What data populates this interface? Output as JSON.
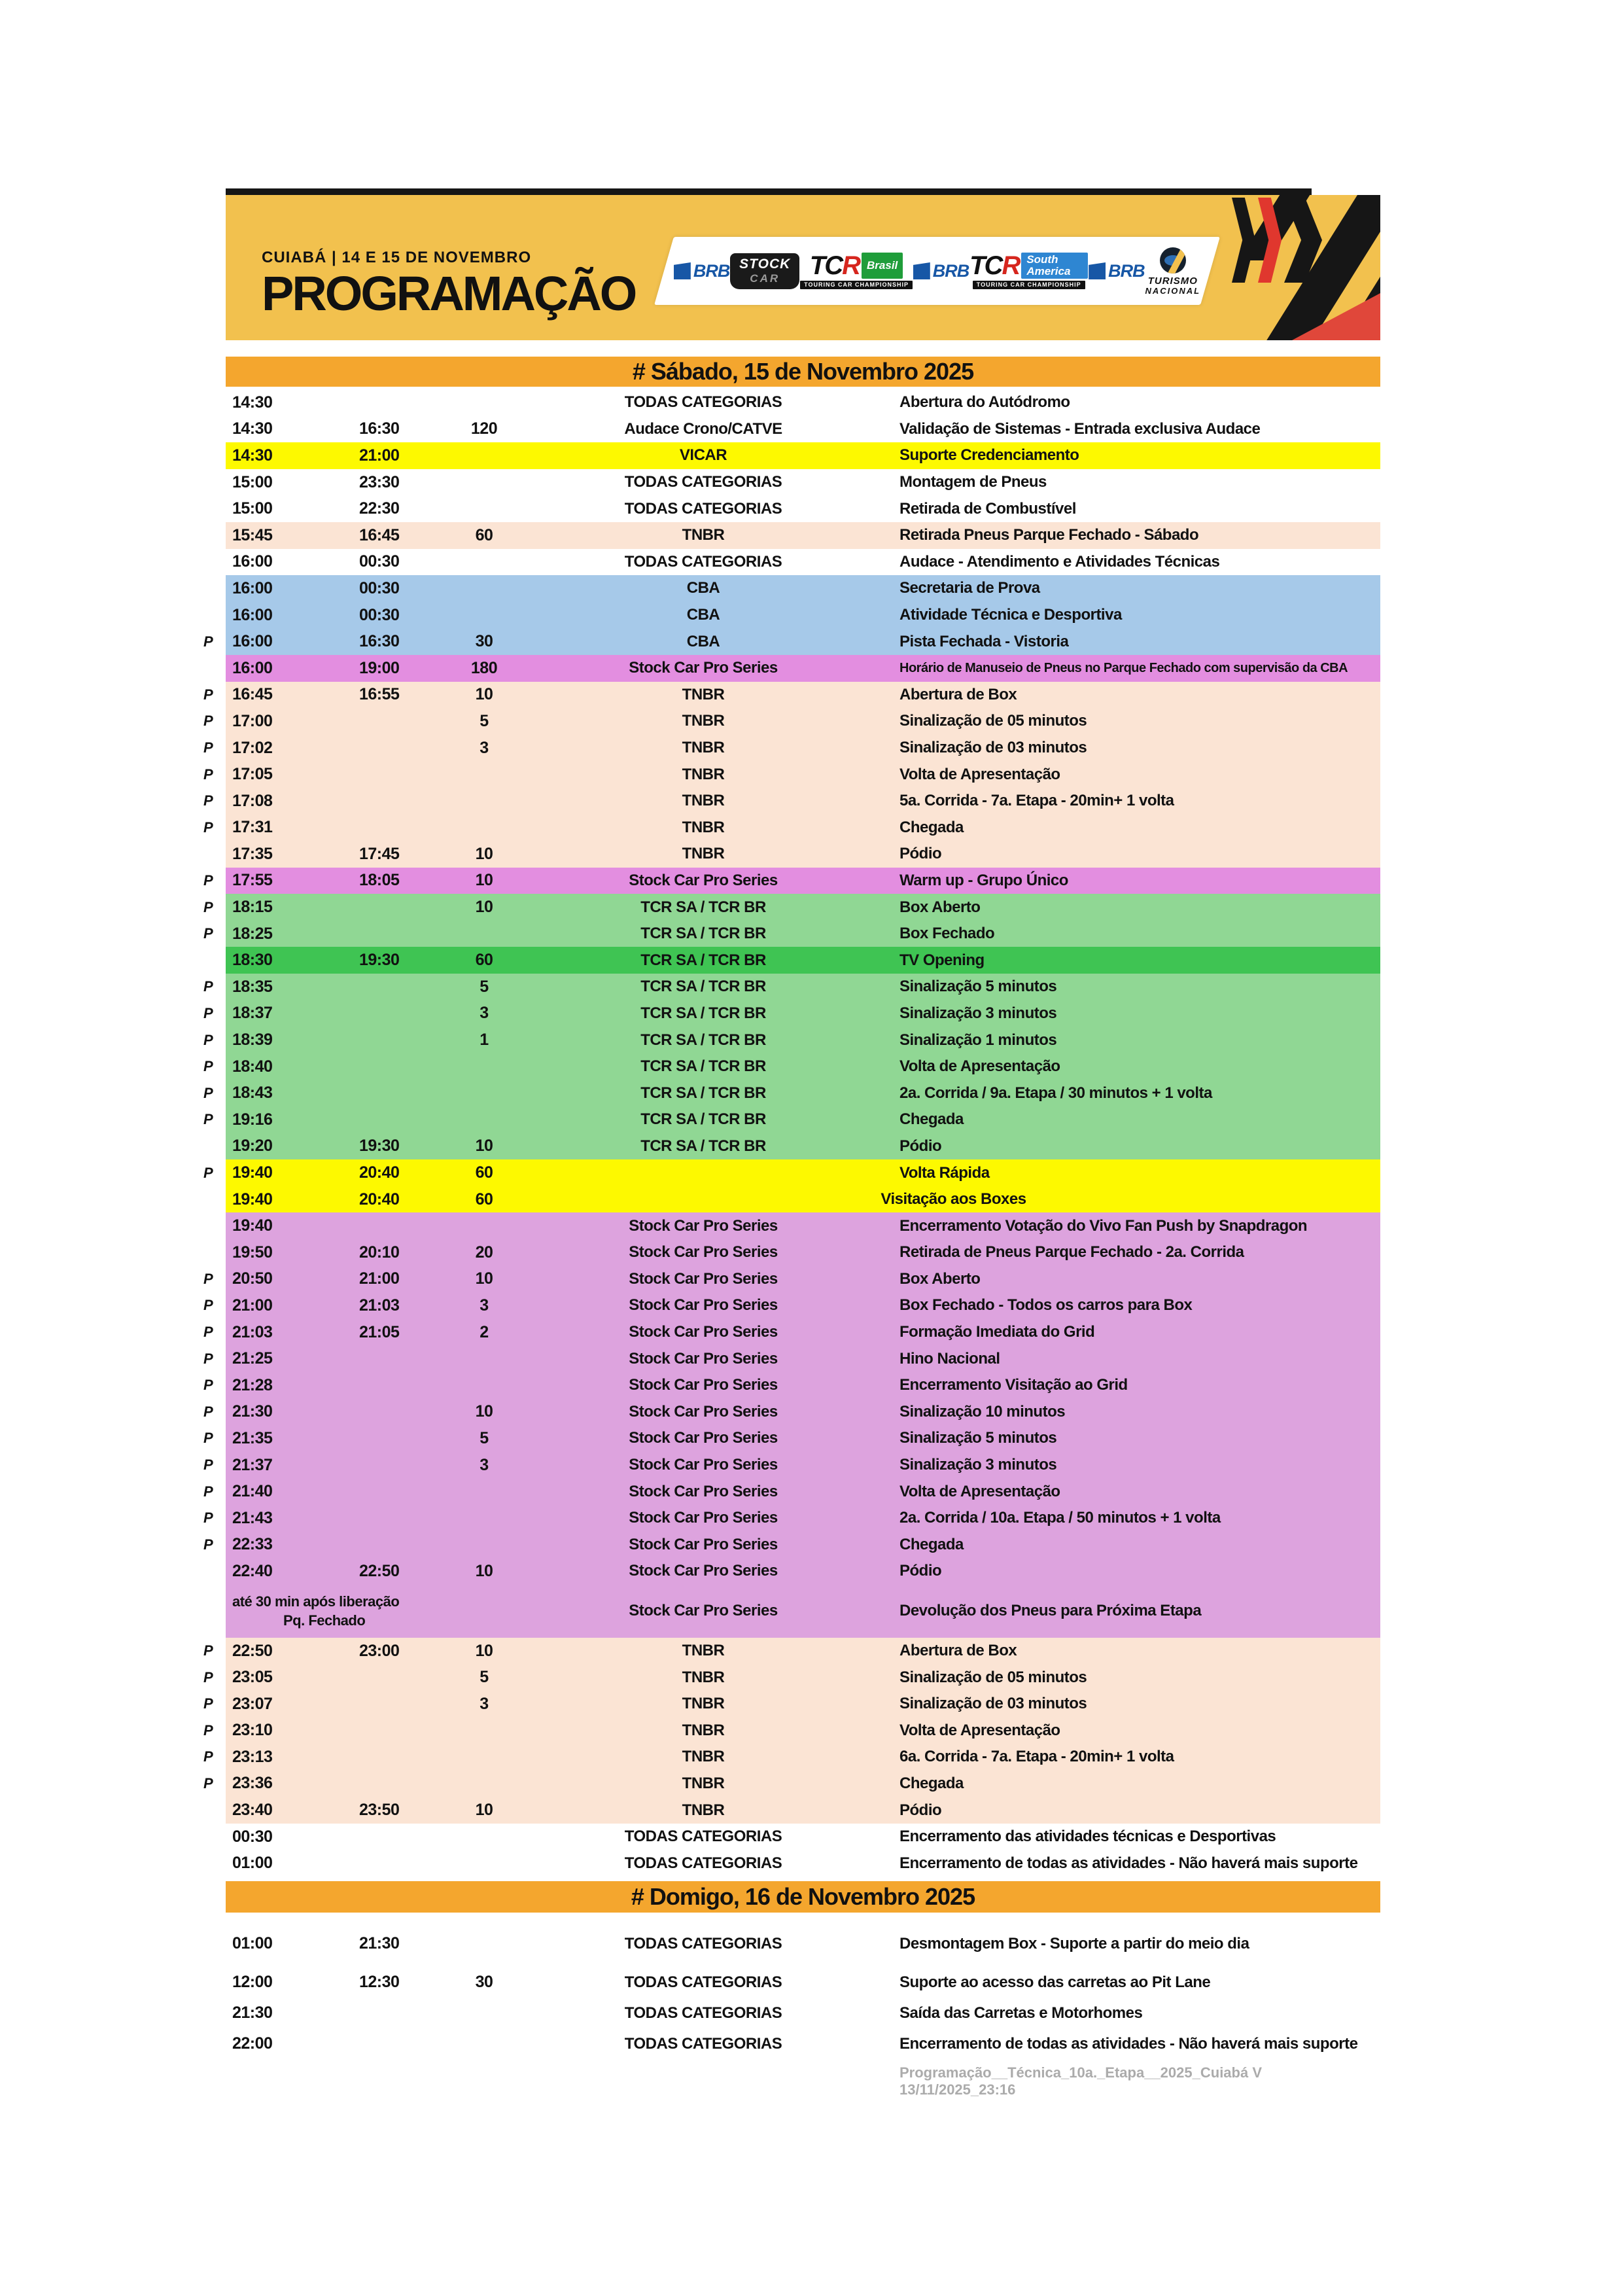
{
  "header": {
    "location_date": "CUIABÁ | 14 E  15 DE NOVEMBRO",
    "title": "PROGRAMAÇÃO",
    "logos": {
      "brb": "BRB",
      "stock_top": "STOCK",
      "stock_bottom": "CAR",
      "tcr_word": "TC",
      "tcr_r": "R",
      "tcr_brasil": "Brasil",
      "tcr_sub": "TOURING CAR CHAMPIONSHIP",
      "tcr_sa": "South America",
      "turismo_1": "TURISMO",
      "turismo_2": "NACIONAL"
    }
  },
  "colors": {
    "banner": "#f2c14e",
    "section_bar": "#f4a62e",
    "white": "#ffffff",
    "yellow": "#fdf900",
    "peach": "#fbe4d4",
    "blue": "#a6c9e9",
    "orchid": "#e38ee0",
    "plum": "#dda3de",
    "green": "#90d794",
    "darkgreen": "#3fc453"
  },
  "sections": [
    {
      "title": "# Sábado, 15 de Novembro 2025",
      "rows": [
        {
          "s": "14:30",
          "c": "TODAS CATEGORIAS",
          "a": "Abertura do Autódromo",
          "bg": "white"
        },
        {
          "s": "14:30",
          "e": "16:30",
          "d": "120",
          "c": "Audace Crono/CATVE",
          "a": "Validação de Sistemas - Entrada exclusiva Audace",
          "bg": "white"
        },
        {
          "s": "14:30",
          "e": "21:00",
          "c": "VICAR",
          "a": "Suporte Credenciamento",
          "bg": "yellow"
        },
        {
          "s": "15:00",
          "e": "23:30",
          "c": "TODAS CATEGORIAS",
          "a": "Montagem de Pneus",
          "bg": "white"
        },
        {
          "s": "15:00",
          "e": "22:30",
          "c": "TODAS CATEGORIAS",
          "a": "Retirada de Combustível",
          "bg": "white"
        },
        {
          "s": "15:45",
          "e": "16:45",
          "d": "60",
          "c": "TNBR",
          "a": "Retirada Pneus Parque Fechado - Sábado",
          "bg": "peach"
        },
        {
          "s": "16:00",
          "e": "00:30",
          "c": "TODAS CATEGORIAS",
          "a": "Audace - Atendimento e Atividades Técnicas",
          "bg": "white"
        },
        {
          "s": "16:00",
          "e": "00:30",
          "c": "CBA",
          "a": "Secretaria de Prova",
          "bg": "blue"
        },
        {
          "s": "16:00",
          "e": "00:30",
          "c": "CBA",
          "a": "Atividade Técnica e Desportiva",
          "bg": "blue"
        },
        {
          "p": 1,
          "s": "16:00",
          "e": "16:30",
          "d": "30",
          "c": "CBA",
          "a": "Pista Fechada - Vistoria",
          "bg": "blue"
        },
        {
          "s": "16:00",
          "e": "19:00",
          "d": "180",
          "c": "Stock Car Pro Series",
          "a": "Horário de Manuseio de Pneus no Parque Fechado com supervisão da CBA",
          "bg": "orchid",
          "small": 1
        },
        {
          "p": 1,
          "s": "16:45",
          "e": "16:55",
          "d": "10",
          "c": "TNBR",
          "a": "Abertura de Box",
          "bg": "peach"
        },
        {
          "p": 1,
          "s": "17:00",
          "d": "5",
          "c": "TNBR",
          "a": "Sinalização de 05 minutos",
          "bg": "peach"
        },
        {
          "p": 1,
          "s": "17:02",
          "d": "3",
          "c": "TNBR",
          "a": "Sinalização de 03 minutos",
          "bg": "peach"
        },
        {
          "p": 1,
          "s": "17:05",
          "c": "TNBR",
          "a": "Volta de Apresentação",
          "bg": "peach"
        },
        {
          "p": 1,
          "s": "17:08",
          "c": "TNBR",
          "a": "5a. Corrida - 7a. Etapa - 20min+ 1 volta",
          "bg": "peach"
        },
        {
          "p": 1,
          "s": "17:31",
          "c": "TNBR",
          "a": "Chegada",
          "bg": "peach"
        },
        {
          "s": "17:35",
          "e": "17:45",
          "d": "10",
          "c": "TNBR",
          "a": "Pódio",
          "bg": "peach"
        },
        {
          "p": 1,
          "s": "17:55",
          "e": "18:05",
          "d": "10",
          "c": "Stock Car Pro Series",
          "a": "Warm up - Grupo Único",
          "bg": "orchid"
        },
        {
          "p": 1,
          "s": "18:15",
          "d": "10",
          "c": "TCR SA / TCR BR",
          "a": "Box Aberto",
          "bg": "green"
        },
        {
          "p": 1,
          "s": "18:25",
          "c": "TCR SA / TCR BR",
          "a": "Box Fechado",
          "bg": "green"
        },
        {
          "s": "18:30",
          "e": "19:30",
          "d": "60",
          "c": "TCR SA / TCR BR",
          "a": "TV Opening",
          "bg": "darkgreen"
        },
        {
          "p": 1,
          "s": "18:35",
          "d": "5",
          "c": "TCR SA / TCR BR",
          "a": "Sinalização 5 minutos",
          "bg": "green"
        },
        {
          "p": 1,
          "s": "18:37",
          "d": "3",
          "c": "TCR SA / TCR BR",
          "a": "Sinalização 3 minutos",
          "bg": "green"
        },
        {
          "p": 1,
          "s": "18:39",
          "d": "1",
          "c": "TCR SA / TCR BR",
          "a": "Sinalização 1 minutos",
          "bg": "green"
        },
        {
          "p": 1,
          "s": "18:40",
          "c": "TCR SA / TCR BR",
          "a": "Volta de Apresentação",
          "bg": "green"
        },
        {
          "p": 1,
          "s": "18:43",
          "c": "TCR SA / TCR BR",
          "a": "2a. Corrida / 9a. Etapa / 30 minutos + 1 volta",
          "bg": "green"
        },
        {
          "p": 1,
          "s": "19:16",
          "c": "TCR SA / TCR BR",
          "a": "Chegada",
          "bg": "green"
        },
        {
          "s": "19:20",
          "e": "19:30",
          "d": "10",
          "c": "TCR SA / TCR BR",
          "a": "Pódio",
          "bg": "green"
        },
        {
          "p": 1,
          "s": "19:40",
          "e": "20:40",
          "d": "60",
          "a": "Volta Rápida",
          "bg": "yellow"
        },
        {
          "s": "19:40",
          "e": "20:40",
          "d": "60",
          "a": "Visitação aos Boxes",
          "bg": "yellow",
          "merge": 1
        },
        {
          "s": "19:40",
          "c": "Stock Car Pro Series",
          "a": "Encerramento Votação do Vivo Fan Push by Snapdragon",
          "bg": "plum"
        },
        {
          "s": "19:50",
          "e": "20:10",
          "d": "20",
          "c": "Stock Car Pro Series",
          "a": "Retirada de Pneus Parque Fechado - 2a. Corrida",
          "bg": "plum"
        },
        {
          "p": 1,
          "s": "20:50",
          "e": "21:00",
          "d": "10",
          "c": "Stock Car Pro Series",
          "a": "Box Aberto",
          "bg": "plum"
        },
        {
          "p": 1,
          "s": "21:00",
          "e": "21:03",
          "d": "3",
          "c": "Stock Car Pro Series",
          "a": "Box Fechado - Todos os carros para Box",
          "bg": "plum"
        },
        {
          "p": 1,
          "s": "21:03",
          "e": "21:05",
          "d": "2",
          "c": "Stock Car Pro Series",
          "a": "Formação Imediata do Grid",
          "bg": "plum"
        },
        {
          "p": 1,
          "s": "21:25",
          "c": "Stock Car Pro Series",
          "a": "Hino Nacional",
          "bg": "plum"
        },
        {
          "p": 1,
          "s": "21:28",
          "c": "Stock Car Pro Series",
          "a": "Encerramento Visitação ao Grid",
          "bg": "plum"
        },
        {
          "p": 1,
          "s": "21:30",
          "d": "10",
          "c": "Stock Car Pro Series",
          "a": "Sinalização 10 minutos",
          "bg": "plum"
        },
        {
          "p": 1,
          "s": "21:35",
          "d": "5",
          "c": "Stock Car Pro Series",
          "a": "Sinalização 5 minutos",
          "bg": "plum"
        },
        {
          "p": 1,
          "s": "21:37",
          "d": "3",
          "c": "Stock Car Pro Series",
          "a": "Sinalização 3 minutos",
          "bg": "plum"
        },
        {
          "p": 1,
          "s": "21:40",
          "c": "Stock Car Pro Series",
          "a": "Volta de Apresentação",
          "bg": "plum"
        },
        {
          "p": 1,
          "s": "21:43",
          "c": "Stock Car Pro Series",
          "a": "2a. Corrida / 10a. Etapa / 50 minutos + 1 volta",
          "bg": "plum"
        },
        {
          "p": 1,
          "s": "22:33",
          "c": "Stock Car Pro Series",
          "a": "Chegada",
          "bg": "plum"
        },
        {
          "s": "22:40",
          "e": "22:50",
          "d": "10",
          "c": "Stock Car Pro Series",
          "a": "Pódio",
          "bg": "plum"
        },
        {
          "s": "até 30 min após liberação",
          "s2": "Pq. Fechado",
          "c": "Stock Car Pro Series",
          "a": "Devolução dos Pneus para Próxima Etapa",
          "bg": "plum",
          "tall": 1
        },
        {
          "p": 1,
          "s": "22:50",
          "e": "23:00",
          "d": "10",
          "c": "TNBR",
          "a": "Abertura de Box",
          "bg": "peach"
        },
        {
          "p": 1,
          "s": "23:05",
          "d": "5",
          "c": "TNBR",
          "a": "Sinalização de 05 minutos",
          "bg": "peach"
        },
        {
          "p": 1,
          "s": "23:07",
          "d": "3",
          "c": "TNBR",
          "a": "Sinalização de 03 minutos",
          "bg": "peach"
        },
        {
          "p": 1,
          "s": "23:10",
          "c": "TNBR",
          "a": "Volta de Apresentação",
          "bg": "peach"
        },
        {
          "p": 1,
          "s": "23:13",
          "c": "TNBR",
          "a": "6a. Corrida - 7a. Etapa - 20min+ 1 volta",
          "bg": "peach"
        },
        {
          "p": 1,
          "s": "23:36",
          "c": "TNBR",
          "a": "Chegada",
          "bg": "peach"
        },
        {
          "s": "23:40",
          "e": "23:50",
          "d": "10",
          "c": "TNBR",
          "a": "Pódio",
          "bg": "peach"
        },
        {
          "s": "00:30",
          "c": "TODAS CATEGORIAS",
          "a": "Encerramento das atividades técnicas e Desportivas",
          "bg": "white"
        },
        {
          "s": "01:00",
          "c": "TODAS CATEGORIAS",
          "a": "Encerramento de todas as atividades - Não haverá mais suporte",
          "bg": "white"
        }
      ]
    },
    {
      "title": "# Domigo, 16 de Novembro 2025",
      "rows": [
        {
          "s": "01:00",
          "e": "21:30",
          "c": "TODAS CATEGORIAS",
          "a": "Desmontagem Box - Suporte a partir do meio dia",
          "bg": "white"
        },
        {
          "s": "12:00",
          "e": "12:30",
          "d": "30",
          "c": "TODAS CATEGORIAS",
          "a": "Suporte ao acesso das carretas ao Pit Lane",
          "bg": "white"
        },
        {
          "s": "21:30",
          "c": "TODAS CATEGORIAS",
          "a": "Saída das Carretas e Motorhomes",
          "bg": "white"
        },
        {
          "s": "22:00",
          "c": "TODAS CATEGORIAS",
          "a": "Encerramento de todas as atividades - Não haverá mais suporte",
          "bg": "white"
        }
      ]
    }
  ],
  "footer": "Programação__Técnica_10a._Etapa__2025_Cuiabá V 13/11/2025_23:16",
  "p_marker": "P"
}
